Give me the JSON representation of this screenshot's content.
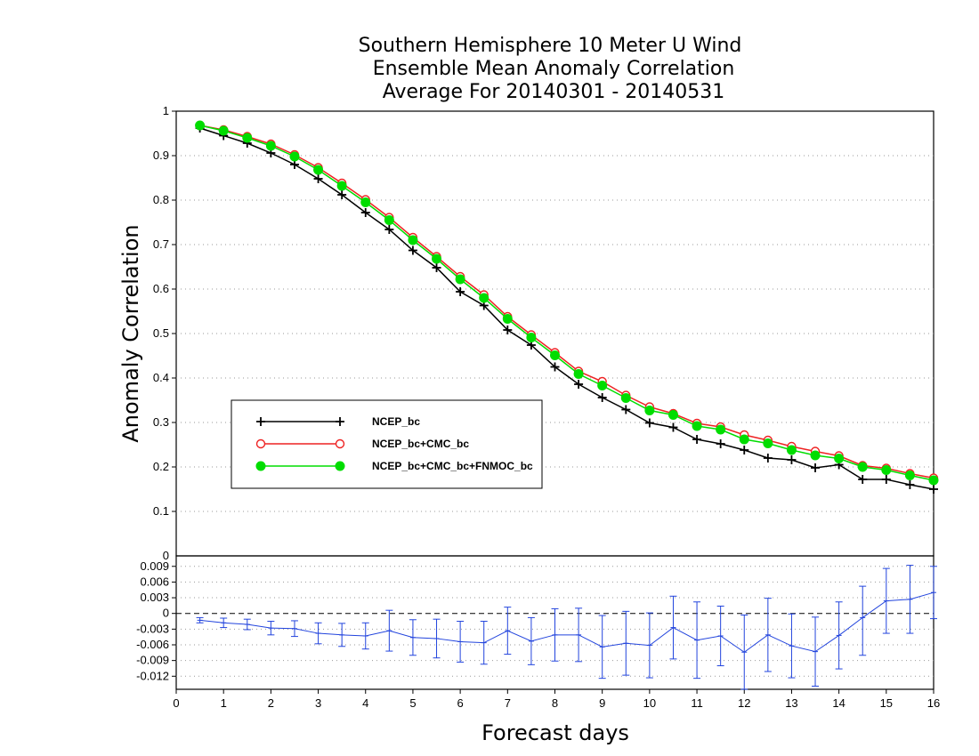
{
  "title_lines": [
    "Southern Hemisphere 10 Meter U Wind",
    "Ensemble Mean Anomaly Correlation",
    "Average For 20140301 - 20140531"
  ],
  "colors": {
    "ncep": "#000000",
    "ncep_cmc": "#ee2222",
    "ncep_cmc_fnmoc": "#00dd00",
    "diff": "#2244dd",
    "grid": "#999999"
  },
  "chart_data": [
    {
      "type": "line",
      "title": "Southern Hemisphere 10 Meter U Wind Ensemble Mean Anomaly Correlation Average For 20140301 - 20140531",
      "ylabel": "Anomaly Correlation",
      "xlabel": "Forecast days",
      "xlim": [
        0,
        16
      ],
      "ylim": [
        0,
        1
      ],
      "yticks": [
        "0.1",
        "0.2",
        "0.3",
        "0.4",
        "0.5",
        "0.6",
        "0.7",
        "0.8",
        "0.9",
        "1"
      ],
      "ytick_values": [
        0.1,
        0.2,
        0.3,
        0.4,
        0.5,
        0.6,
        0.7,
        0.8,
        0.9,
        1
      ],
      "grid": true,
      "legend_position": "left-middle",
      "x": [
        0.5,
        1,
        1.5,
        2,
        2.5,
        3,
        3.5,
        4,
        4.5,
        5,
        5.5,
        6,
        6.5,
        7,
        7.5,
        8,
        8.5,
        9,
        9.5,
        10,
        10.5,
        11,
        11.5,
        12,
        12.5,
        13,
        13.5,
        14,
        14.5,
        15,
        15.5,
        16
      ],
      "series": [
        {
          "name": "NCEP_bc",
          "marker": "plus",
          "color": "#000000",
          "values": [
            0.962,
            0.945,
            0.928,
            0.906,
            0.88,
            0.848,
            0.812,
            0.772,
            0.734,
            0.687,
            0.648,
            0.594,
            0.563,
            0.508,
            0.474,
            0.425,
            0.386,
            0.356,
            0.329,
            0.299,
            0.289,
            0.262,
            0.252,
            0.238,
            0.22,
            0.216,
            0.198,
            0.205,
            0.172,
            0.172,
            0.16,
            0.15
          ]
        },
        {
          "name": "NCEP_bc+CMC_bc",
          "marker": "open-circle",
          "color": "#ee2222",
          "values": [
            0.968,
            0.958,
            0.943,
            0.926,
            0.902,
            0.873,
            0.838,
            0.801,
            0.761,
            0.716,
            0.673,
            0.628,
            0.587,
            0.538,
            0.497,
            0.457,
            0.415,
            0.392,
            0.361,
            0.335,
            0.32,
            0.298,
            0.29,
            0.272,
            0.26,
            0.246,
            0.235,
            0.225,
            0.203,
            0.197,
            0.185,
            0.175
          ]
        },
        {
          "name": "NCEP_bc+CMC_bc+FNMOC_bc",
          "marker": "filled-circle",
          "color": "#00dd00",
          "values": [
            0.968,
            0.956,
            0.94,
            0.922,
            0.898,
            0.868,
            0.832,
            0.795,
            0.755,
            0.71,
            0.668,
            0.622,
            0.58,
            0.533,
            0.491,
            0.451,
            0.409,
            0.383,
            0.355,
            0.327,
            0.317,
            0.292,
            0.284,
            0.262,
            0.253,
            0.238,
            0.226,
            0.219,
            0.2,
            0.193,
            0.181,
            0.17
          ]
        }
      ]
    },
    {
      "type": "line",
      "xlabel": "Forecast days",
      "xlim": [
        0,
        16
      ],
      "ylim": [
        -0.0145,
        0.011
      ],
      "yticks": [
        "-0.012",
        "-0.009",
        "-0.006",
        "-0.003",
        "0",
        "0.003",
        "0.006",
        "0.009"
      ],
      "ytick_values": [
        -0.012,
        -0.009,
        -0.006,
        -0.003,
        0,
        0.003,
        0.006,
        0.009
      ],
      "xticks": [
        "0",
        "1",
        "2",
        "3",
        "4",
        "5",
        "6",
        "7",
        "8",
        "9",
        "10",
        "11",
        "12",
        "13",
        "14",
        "15",
        "16"
      ],
      "grid": true,
      "x": [
        0.5,
        1,
        1.5,
        2,
        2.5,
        3,
        3.5,
        4,
        4.5,
        5,
        5.5,
        6,
        6.5,
        7,
        7.5,
        8,
        8.5,
        9,
        9.5,
        10,
        10.5,
        11,
        11.5,
        12,
        12.5,
        13,
        13.5,
        14,
        14.5,
        15,
        15.5,
        16
      ],
      "series": [
        {
          "name": "",
          "color": "#2244dd",
          "values": [
            -0.0013,
            -0.0018,
            -0.0021,
            -0.0028,
            -0.0029,
            -0.0038,
            -0.0041,
            -0.0043,
            -0.0033,
            -0.0046,
            -0.0048,
            -0.0054,
            -0.0056,
            -0.0033,
            -0.0053,
            -0.0041,
            -0.0041,
            -0.0064,
            -0.0057,
            -0.0061,
            -0.0027,
            -0.0051,
            -0.0043,
            -0.0074,
            -0.0041,
            -0.0062,
            -0.0073,
            -0.0042,
            -0.0008,
            0.0024,
            0.0027,
            0.004
          ],
          "lower": [
            -0.0018,
            -0.0027,
            -0.0031,
            -0.0041,
            -0.0044,
            -0.0058,
            -0.0063,
            -0.0068,
            -0.0072,
            -0.008,
            -0.0085,
            -0.0093,
            -0.0097,
            -0.0078,
            -0.0098,
            -0.0091,
            -0.0092,
            -0.0124,
            -0.0118,
            -0.0123,
            -0.0087,
            -0.0124,
            -0.01,
            -0.0145,
            -0.0111,
            -0.0123,
            -0.0139,
            -0.0106,
            -0.008,
            -0.0038,
            -0.0038,
            -0.001
          ],
          "upper": [
            -0.0008,
            -0.0009,
            -0.0011,
            -0.0015,
            -0.0014,
            -0.0018,
            -0.0019,
            -0.0018,
            0.0006,
            -0.0012,
            -0.0011,
            -0.0015,
            -0.0015,
            0.0012,
            -0.0008,
            0.0009,
            0.001,
            -0.0004,
            0.0004,
            0.0001,
            0.0033,
            0.0022,
            0.0014,
            -0.0003,
            0.0029,
            -0.0001,
            -0.0007,
            0.0022,
            0.0052,
            0.0086,
            0.0092,
            0.009
          ]
        }
      ]
    }
  ]
}
